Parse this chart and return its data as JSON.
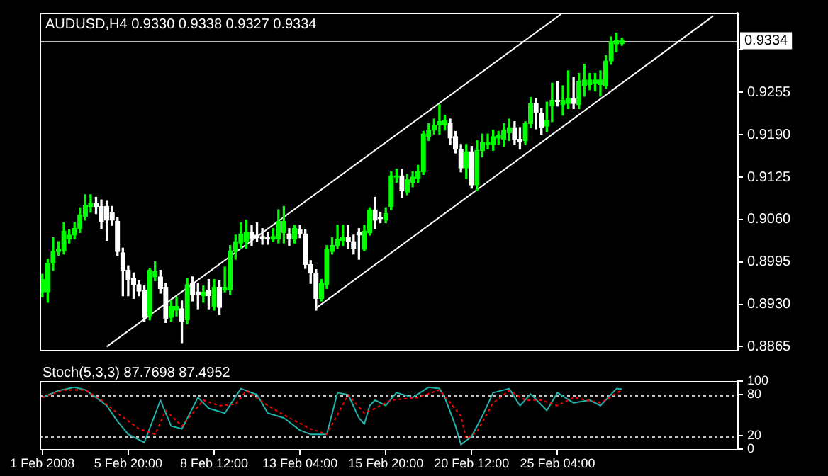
{
  "chart_data": [
    {
      "type": "candlestick",
      "title": "AUDUSD,H4 0.9330 0.9338 0.9327 0.9334",
      "colors": [
        "#00ff00",
        "#00ff00",
        "#00ff00",
        "#00ff00",
        "#00ff00",
        "#00ff00",
        "#00ff00",
        "#00ff00",
        "#00ff00",
        "#00ff00",
        "#ffffff",
        "#ffffff",
        "#ffffff",
        "#ffffff",
        "#ffffff",
        "#ffffff",
        "#ffffff",
        "#ffffff",
        "#ffffff",
        "#ffffff",
        "#00ff00",
        "#00ff00",
        "#ffffff",
        "#ffffff",
        "#00ff00",
        "#00ff00",
        "#ffffff",
        "#00ff00",
        "#ffffff",
        "#ffffff",
        "#00ff00",
        "#ffffff",
        "#00ff00",
        "#ffffff",
        "#00ff00",
        "#00ff00",
        "#00ff00",
        "#00ff00",
        "#00ff00",
        "#ffffff",
        "#ffffff",
        "#ffffff",
        "#ffffff",
        "#00ff00",
        "#00ff00",
        "#00ff00",
        "#ffffff",
        "#00ff00",
        "#ffffff",
        "#ffffff",
        "#ffffff",
        "#ffffff",
        "#00ff00",
        "#00ff00",
        "#00ff00",
        "#00ff00",
        "#00ff00",
        "#ffffff",
        "#ffffff",
        "#ffffff",
        "#00ff00",
        "#00ff00",
        "#ffffff",
        "#ffffff",
        "#00ff00",
        "#00ff00",
        "#00ff00",
        "#ffffff",
        "#00ff00",
        "#00ff00",
        "#00ff00",
        "#00ff00",
        "#00ff00",
        "#00ff00",
        "#00ff00",
        "#00ff00",
        "#ffffff",
        "#ffffff",
        "#ffffff",
        "#00ff00",
        "#ffffff",
        "#00ff00",
        "#00ff00",
        "#00ff00",
        "#00ff00",
        "#00ff00",
        "#00ff00",
        "#00ff00",
        "#ffffff",
        "#ffffff",
        "#00ff00",
        "#00ff00",
        "#ffffff",
        "#ffffff",
        "#00ff00",
        "#00ff00",
        "#ffffff",
        "#00ff00",
        "#00ff00",
        "#ffffff",
        "#00ff00",
        "#00ff00",
        "#00ff00",
        "#00ff00",
        "#00ff00",
        "#00ff00",
        "#00ff00",
        "#00ff00",
        "#00ff00",
        null,
        null,
        null,
        null,
        null,
        null,
        null,
        null,
        null,
        null,
        null,
        null,
        null,
        null,
        null,
        null,
        null,
        null,
        null,
        null,
        null
      ],
      "categories": [
        null,
        null,
        null,
        null,
        null,
        null,
        null,
        null,
        null,
        null,
        null,
        null,
        null,
        null,
        null,
        null,
        null,
        null,
        null,
        null,
        null,
        null,
        null,
        null,
        null,
        null,
        null,
        null,
        null,
        null,
        null,
        null,
        null,
        null,
        null,
        null,
        null,
        null,
        null,
        null,
        null,
        null,
        null,
        null,
        null,
        null,
        null,
        null,
        null,
        null,
        null,
        null,
        null,
        null,
        null,
        null,
        null,
        null,
        null,
        null,
        null,
        null,
        null,
        null,
        null,
        null,
        null,
        null,
        null,
        null,
        null,
        null,
        null,
        null,
        null,
        null,
        null,
        null,
        null,
        null,
        null,
        null,
        null,
        null,
        null,
        null,
        null,
        null,
        null,
        null,
        null,
        null,
        null,
        null,
        null,
        null,
        null,
        null,
        null,
        null,
        null,
        null,
        null,
        null,
        null,
        null,
        null,
        null,
        null,
        null,
        null,
        null,
        null,
        null,
        null,
        null,
        null,
        null,
        null,
        null,
        null,
        null,
        null,
        null,
        null,
        null,
        null,
        null,
        null,
        null
      ],
      "ohlc": [
        [
          0.8949,
          0.8976,
          0.8941,
          0.8968
        ],
        [
          0.8949,
          0.8999,
          0.8933,
          0.8993
        ],
        [
          0.8993,
          0.9032,
          0.8982,
          0.9011
        ],
        [
          0.9011,
          0.9026,
          0.9005,
          0.9014
        ],
        [
          0.9012,
          0.9055,
          0.9007,
          0.9042
        ],
        [
          0.903,
          0.9044,
          0.9024,
          0.9036
        ],
        [
          0.9036,
          0.9055,
          0.903,
          0.9046
        ],
        [
          0.9046,
          0.9078,
          0.904,
          0.9067
        ],
        [
          0.9065,
          0.9098,
          0.9059,
          0.9082
        ],
        [
          0.908,
          0.9098,
          0.9071,
          0.9084
        ],
        [
          0.9084,
          0.9094,
          0.9069,
          0.908
        ],
        [
          0.908,
          0.909,
          0.9046,
          0.9057
        ],
        [
          0.908,
          0.9088,
          0.9028,
          0.9059
        ],
        [
          0.9071,
          0.908,
          0.9051,
          0.9059
        ],
        [
          0.9057,
          0.9063,
          0.9005,
          0.9011
        ],
        [
          0.9009,
          0.9016,
          0.8943,
          0.8982
        ],
        [
          0.8982,
          0.8989,
          0.8943,
          0.8968
        ],
        [
          0.897,
          0.8978,
          0.8939,
          0.896
        ],
        [
          0.896,
          0.8966,
          0.8943,
          0.895
        ],
        [
          0.8952,
          0.8958,
          0.8904,
          0.891
        ],
        [
          0.8912,
          0.8985,
          0.8906,
          0.8982
        ],
        [
          0.8972,
          0.8995,
          0.8966,
          0.898
        ],
        [
          0.8972,
          0.8982,
          0.8947,
          0.8954
        ],
        [
          0.8956,
          0.8962,
          0.8902,
          0.8908
        ],
        [
          0.891,
          0.8935,
          0.8904,
          0.8927
        ],
        [
          0.8921,
          0.8941,
          0.8912,
          0.8927
        ],
        [
          0.8923,
          0.8935,
          0.8871,
          0.8904
        ],
        [
          0.8906,
          0.897,
          0.89,
          0.896
        ],
        [
          0.8962,
          0.8972,
          0.8935,
          0.8945
        ],
        [
          0.8949,
          0.8962,
          0.8923,
          0.8945
        ],
        [
          0.8943,
          0.8958,
          0.8933,
          0.8949
        ],
        [
          0.8952,
          0.8968,
          0.8923,
          0.8943
        ],
        [
          0.8927,
          0.8968,
          0.8921,
          0.8956
        ],
        [
          0.8956,
          0.8966,
          0.8914,
          0.8925
        ],
        [
          0.8952,
          0.8987,
          0.8949,
          0.8956
        ],
        [
          0.8952,
          0.902,
          0.8945,
          0.9012
        ],
        [
          0.9011,
          0.9036,
          0.8999,
          0.9026
        ],
        [
          0.9024,
          0.9055,
          0.9016,
          0.9038
        ],
        [
          0.9026,
          0.9059,
          0.9016,
          0.904
        ],
        [
          0.904,
          0.9051,
          0.902,
          0.903
        ],
        [
          0.9036,
          0.9055,
          0.9026,
          0.9032
        ],
        [
          0.9034,
          0.9046,
          0.9022,
          0.903
        ],
        [
          0.9032,
          0.904,
          0.9022,
          0.903
        ],
        [
          0.903,
          0.9046,
          0.9026,
          0.9034
        ],
        [
          0.903,
          0.9075,
          0.9024,
          0.9057
        ],
        [
          0.904,
          0.908,
          0.9024,
          0.9057
        ],
        [
          0.9038,
          0.9046,
          0.902,
          0.903
        ],
        [
          0.903,
          0.9051,
          0.9024,
          0.9046
        ],
        [
          0.9044,
          0.9051,
          0.9032,
          0.9038
        ],
        [
          0.9038,
          0.9044,
          0.8985,
          0.8991
        ],
        [
          0.8991,
          0.8997,
          0.8962,
          0.8978
        ],
        [
          0.8978,
          0.8983,
          0.8921,
          0.8939
        ],
        [
          0.8939,
          0.8968,
          0.8935,
          0.8962
        ],
        [
          0.896,
          0.902,
          0.8954,
          0.9014
        ],
        [
          0.9011,
          0.9032,
          0.9007,
          0.902
        ],
        [
          0.902,
          0.9051,
          0.9016,
          0.903
        ],
        [
          0.9028,
          0.9051,
          0.902,
          0.9032
        ],
        [
          0.9032,
          0.9051,
          0.9016,
          0.9026
        ],
        [
          0.9026,
          0.9036,
          0.9007,
          0.9016
        ],
        [
          0.904,
          0.9046,
          0.8999,
          0.9036
        ],
        [
          0.9014,
          0.9051,
          0.9012,
          0.9042
        ],
        [
          0.904,
          0.9078,
          0.9036,
          0.9075
        ],
        [
          0.9075,
          0.9094,
          0.9046,
          0.9059
        ],
        [
          0.9063,
          0.9071,
          0.9055,
          0.9061
        ],
        [
          0.9059,
          0.9078,
          0.9055,
          0.9069
        ],
        [
          0.908,
          0.9133,
          0.9075,
          0.9127
        ],
        [
          0.9125,
          0.9137,
          0.9117,
          0.9127
        ],
        [
          0.9127,
          0.9137,
          0.9094,
          0.9104
        ],
        [
          0.9102,
          0.9129,
          0.9098,
          0.9121
        ],
        [
          0.9117,
          0.9133,
          0.911,
          0.9125
        ],
        [
          0.9123,
          0.9143,
          0.9117,
          0.9133
        ],
        [
          0.9133,
          0.9195,
          0.9129,
          0.9191
        ],
        [
          0.9187,
          0.9207,
          0.9181,
          0.9197
        ],
        [
          0.9197,
          0.9214,
          0.9191,
          0.9205
        ],
        [
          0.9205,
          0.9236,
          0.9191,
          0.921
        ],
        [
          0.9205,
          0.922,
          0.9197,
          0.9212
        ],
        [
          0.9207,
          0.9214,
          0.9175,
          0.9185
        ],
        [
          0.9187,
          0.9195,
          0.9162,
          0.9168
        ],
        [
          0.9168,
          0.9175,
          0.9133,
          0.9139
        ],
        [
          0.9139,
          0.9175,
          0.9123,
          0.9164
        ],
        [
          0.9164,
          0.9172,
          0.9108,
          0.9113
        ],
        [
          0.9113,
          0.9181,
          0.9104,
          0.9166
        ],
        [
          0.9166,
          0.9191,
          0.9156,
          0.9179
        ],
        [
          0.9175,
          0.9191,
          0.9168,
          0.9179
        ],
        [
          0.9175,
          0.9197,
          0.9166,
          0.9187
        ],
        [
          0.9185,
          0.9195,
          0.9175,
          0.9189
        ],
        [
          0.9183,
          0.9207,
          0.9172,
          0.9197
        ],
        [
          0.9193,
          0.9214,
          0.9181,
          0.9201
        ],
        [
          0.9201,
          0.921,
          0.9175,
          0.9183
        ],
        [
          0.9183,
          0.9201,
          0.9168,
          0.9179
        ],
        [
          0.9181,
          0.921,
          0.9175,
          0.9207
        ],
        [
          0.9207,
          0.9247,
          0.9201,
          0.9238
        ],
        [
          0.9238,
          0.9245,
          0.9199,
          0.9224
        ],
        [
          0.9222,
          0.923,
          0.9191,
          0.9201
        ],
        [
          0.9203,
          0.924,
          0.9195,
          0.9212
        ],
        [
          0.9234,
          0.9269,
          0.921,
          0.9243
        ],
        [
          0.9243,
          0.9272,
          0.9234,
          0.9241
        ],
        [
          0.9236,
          0.9265,
          0.922,
          0.9243
        ],
        [
          0.9238,
          0.9288,
          0.923,
          0.9245
        ],
        [
          0.9245,
          0.9278,
          0.923,
          0.9238
        ],
        [
          0.9236,
          0.9284,
          0.923,
          0.9272
        ],
        [
          0.9265,
          0.9298,
          0.9249,
          0.9274
        ],
        [
          0.9267,
          0.9284,
          0.9259,
          0.9274
        ],
        [
          0.9269,
          0.9284,
          0.9257,
          0.9274
        ],
        [
          0.9267,
          0.9288,
          0.9249,
          0.9274
        ],
        [
          0.9265,
          0.9311,
          0.9261,
          0.9303
        ],
        [
          0.9303,
          0.934,
          0.9298,
          0.9333
        ],
        [
          0.9329,
          0.9346,
          0.9317,
          0.9335
        ],
        [
          0.933,
          0.9338,
          0.9327,
          0.9334
        ],
        null,
        null,
        null,
        null,
        null,
        null,
        null,
        null,
        null,
        null,
        null,
        null,
        null,
        null,
        null,
        null,
        null,
        null,
        null,
        null,
        null
      ],
      "series": [
        {
          "type": "line",
          "color": "#ffffff",
          "values": [
            null,
            null,
            null,
            null,
            null,
            null,
            null,
            null,
            null,
            null,
            null,
            null,
            0.8865,
            null,
            null,
            null,
            null,
            null,
            null,
            null,
            null,
            null,
            null,
            null,
            null,
            null,
            null,
            null,
            null,
            null,
            null,
            null,
            null,
            null,
            null,
            null,
            null,
            null,
            null,
            null,
            null,
            null,
            null,
            null,
            null,
            null,
            null,
            null,
            null,
            null,
            null,
            null,
            null,
            null,
            null,
            null,
            null,
            null,
            null,
            null,
            null,
            null,
            null,
            null,
            null,
            null,
            null,
            null,
            null,
            null,
            null,
            null,
            null,
            null,
            null,
            null,
            null,
            null,
            null,
            null,
            null,
            null,
            null,
            null,
            null,
            null,
            null,
            null,
            null,
            null,
            null,
            null,
            null,
            null,
            null,
            null,
            null,
            0.9377,
            null,
            null,
            null,
            null,
            null,
            null,
            null,
            null,
            null,
            null,
            null,
            null,
            null,
            null,
            null,
            null,
            null,
            null,
            null,
            null,
            null,
            null,
            null,
            null,
            null,
            null,
            null,
            null,
            null,
            null,
            null,
            null
          ]
        },
        {
          "type": "line",
          "color": "#ffffff",
          "values": [
            null,
            null,
            null,
            null,
            null,
            null,
            null,
            null,
            null,
            null,
            null,
            null,
            null,
            null,
            null,
            null,
            null,
            null,
            null,
            null,
            null,
            null,
            null,
            null,
            null,
            null,
            null,
            null,
            null,
            null,
            null,
            null,
            null,
            null,
            null,
            null,
            null,
            null,
            null,
            null,
            null,
            null,
            null,
            null,
            null,
            null,
            null,
            null,
            null,
            null,
            null,
            0.8924,
            null,
            null,
            null,
            null,
            null,
            null,
            null,
            null,
            null,
            null,
            null,
            null,
            null,
            null,
            null,
            null,
            null,
            null,
            null,
            null,
            null,
            null,
            null,
            null,
            null,
            null,
            null,
            null,
            null,
            null,
            null,
            null,
            null,
            null,
            null,
            null,
            null,
            null,
            null,
            null,
            null,
            null,
            null,
            null,
            null,
            null,
            null,
            null,
            null,
            null,
            null,
            null,
            null,
            null,
            null,
            null,
            null,
            null,
            null,
            null,
            null,
            null,
            null,
            null,
            null,
            null,
            null,
            null,
            null,
            null,
            null,
            null,
            null,
            0.9372,
            null,
            null,
            null,
            null
          ]
        }
      ],
      "ylim": [
        0.886,
        0.9377
      ],
      "yticks": [
        {
          "value": 0.8865,
          "label": "0.8865"
        },
        {
          "value": 0.893,
          "label": "0.8930"
        },
        {
          "value": 0.8995,
          "label": "0.8995"
        },
        {
          "value": 0.906,
          "label": "0.9060"
        },
        {
          "value": 0.9125,
          "label": "0.9125"
        },
        {
          "value": 0.919,
          "label": "0.9190"
        },
        {
          "value": 0.9255,
          "label": "0.9255"
        },
        {
          "value": 0.932,
          "label": null
        }
      ],
      "tick_labels": "y",
      "ref_lines": [
        {
          "axis": "y",
          "value": 0.9334,
          "label": "0.9334",
          "color": "#c0c0c0"
        }
      ]
    },
    {
      "type": "line",
      "title": "Stoch(5,3,3) 87.7698 87.4952",
      "categories": [
        "1 Feb 2008",
        null,
        null,
        null,
        null,
        null,
        null,
        null,
        null,
        null,
        null,
        null,
        null,
        null,
        null,
        null,
        "5 Feb 20:00",
        null,
        null,
        null,
        null,
        null,
        null,
        null,
        null,
        null,
        null,
        null,
        null,
        null,
        null,
        null,
        "8 Feb 12:00",
        null,
        null,
        null,
        null,
        null,
        null,
        null,
        null,
        null,
        null,
        null,
        null,
        null,
        null,
        null,
        "13 Feb 04:00",
        null,
        null,
        null,
        null,
        null,
        null,
        null,
        null,
        null,
        null,
        null,
        null,
        null,
        null,
        null,
        "15 Feb 20:00",
        null,
        null,
        null,
        null,
        null,
        null,
        null,
        null,
        null,
        null,
        null,
        null,
        null,
        null,
        null,
        "20 Feb 12:00",
        null,
        null,
        null,
        null,
        null,
        null,
        null,
        null,
        null,
        null,
        null,
        null,
        null,
        null,
        null,
        "25 Feb 04:00",
        null,
        null,
        null,
        null,
        null,
        null,
        null,
        null,
        null,
        null,
        null,
        null,
        null,
        null,
        null,
        null,
        null,
        null,
        null,
        null,
        null,
        null,
        null,
        null,
        null,
        null,
        null,
        null,
        null,
        null,
        null,
        null,
        null
      ],
      "series": [
        {
          "color": "#20b2aa",
          "values": [
            76,
            null,
            null,
            86,
            null,
            null,
            91,
            null,
            87,
            null,
            76,
            null,
            64,
            null,
            41,
            null,
            22,
            null,
            null,
            10,
            null,
            null,
            72,
            null,
            34,
            null,
            30,
            null,
            null,
            76,
            null,
            60,
            null,
            null,
            53,
            null,
            null,
            89,
            null,
            null,
            80,
            null,
            53,
            null,
            null,
            46,
            null,
            null,
            28,
            null,
            22,
            null,
            null,
            22,
            null,
            83,
            null,
            80,
            null,
            46,
            37,
            64,
            72,
            null,
            64,
            null,
            83,
            null,
            null,
            76,
            null,
            null,
            91,
            null,
            89,
            76,
            null,
            34,
            7,
            null,
            19,
            null,
            49,
            null,
            83,
            null,
            null,
            89,
            null,
            64,
            null,
            81,
            null,
            null,
            57,
            null,
            83,
            null,
            null,
            68,
            null,
            null,
            72,
            null,
            64,
            null,
            null,
            89,
            88,
            null,
            null,
            null,
            null,
            null,
            null,
            null,
            null,
            null,
            null,
            null,
            null,
            null,
            null,
            null,
            null,
            null,
            null,
            null,
            null,
            null
          ]
        },
        {
          "color": "#ff0000",
          "line_style": "dashed",
          "values": [
            76,
            null,
            null,
            null,
            87,
            null,
            null,
            null,
            87,
            null,
            null,
            72,
            null,
            null,
            53,
            null,
            null,
            null,
            30,
            null,
            null,
            22,
            null,
            57,
            null,
            null,
            34,
            null,
            null,
            null,
            72,
            null,
            null,
            64,
            null,
            null,
            66,
            null,
            86,
            null,
            null,
            null,
            64,
            null,
            null,
            null,
            46,
            null,
            null,
            null,
            30,
            null,
            null,
            22,
            null,
            null,
            null,
            80,
            null,
            null,
            53,
            null,
            60,
            null,
            null,
            72,
            null,
            null,
            null,
            null,
            76,
            null,
            null,
            null,
            87,
            null,
            null,
            null,
            49,
            15,
            null,
            26,
            null,
            null,
            68,
            null,
            null,
            86,
            null,
            null,
            72,
            null,
            null,
            72,
            null,
            null,
            64,
            null,
            null,
            76,
            null,
            null,
            null,
            null,
            68,
            null,
            null,
            null,
            87,
            null,
            null,
            null,
            null,
            null,
            null,
            null,
            null,
            null,
            null,
            null,
            null,
            null,
            null,
            null,
            null,
            null,
            null,
            null,
            null,
            null
          ]
        }
      ],
      "ylim": [
        0,
        100
      ],
      "yticks": [
        0,
        20,
        80,
        100
      ],
      "ref_lines": [
        {
          "axis": "y",
          "value": 20,
          "line_style": "dashed",
          "color": "#c0c0c0"
        },
        {
          "axis": "y",
          "value": 80,
          "line_style": "dashed",
          "color": "#c0c0c0"
        }
      ]
    }
  ]
}
